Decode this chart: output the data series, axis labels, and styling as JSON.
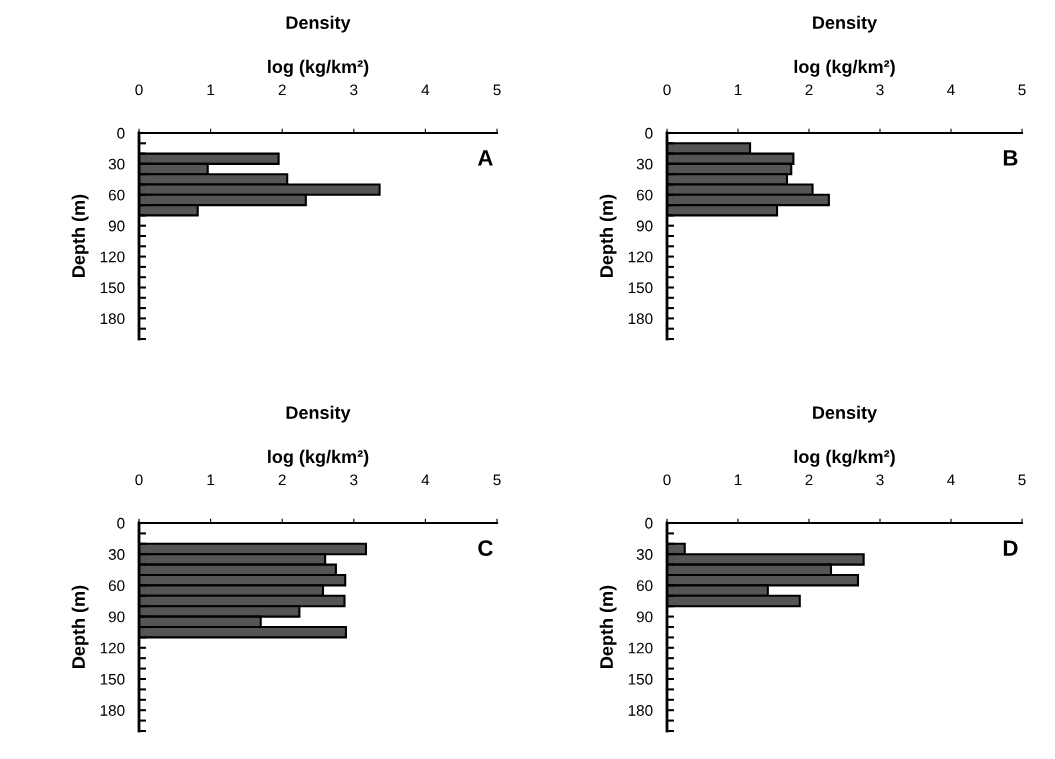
{
  "chart_data": [
    {
      "type": "bar",
      "orientation": "horizontal",
      "title": "Density",
      "xlabel": "log (kg/km²)",
      "ylabel": "Depth (m)",
      "annotations": [
        "A"
      ],
      "x": [
        25,
        35,
        45,
        55,
        65,
        75
      ],
      "values": [
        1.95,
        0.96,
        2.07,
        3.36,
        2.33,
        0.82
      ],
      "color": "#555555",
      "xlim": [
        0,
        5
      ],
      "xticks": [
        0,
        1,
        2,
        3,
        4,
        5
      ],
      "ylim": [
        200,
        0
      ],
      "yticks": [
        0,
        {
          "value": 10,
          "label": null
        },
        {
          "value": 20,
          "label": null
        },
        30,
        {
          "value": 40,
          "label": null
        },
        {
          "value": 50,
          "label": null
        },
        60,
        {
          "value": 70,
          "label": null
        },
        {
          "value": 80,
          "label": null
        },
        90,
        {
          "value": 100,
          "label": null
        },
        {
          "value": 110,
          "label": null
        },
        120,
        {
          "value": 130,
          "label": null
        },
        {
          "value": 140,
          "label": null
        },
        150,
        {
          "value": 160,
          "label": null
        },
        {
          "value": 170,
          "label": null
        },
        180,
        {
          "value": 190,
          "label": null
        },
        {
          "value": 200,
          "label": null
        }
      ],
      "grid": false,
      "legend": false
    },
    {
      "type": "bar",
      "orientation": "horizontal",
      "title": "Density",
      "xlabel": "log (kg/km²)",
      "ylabel": "Depth (m)",
      "annotations": [
        "B"
      ],
      "x": [
        15,
        25,
        35,
        45,
        55,
        65,
        75
      ],
      "values": [
        1.17,
        1.78,
        1.75,
        1.69,
        2.05,
        2.28,
        1.55
      ],
      "color": "#555555",
      "xlim": [
        0,
        5
      ],
      "xticks": [
        0,
        1,
        2,
        3,
        4,
        5
      ],
      "ylim": [
        200,
        0
      ],
      "yticks": [
        0,
        {
          "value": 10,
          "label": null
        },
        {
          "value": 20,
          "label": null
        },
        30,
        {
          "value": 40,
          "label": null
        },
        {
          "value": 50,
          "label": null
        },
        60,
        {
          "value": 70,
          "label": null
        },
        {
          "value": 80,
          "label": null
        },
        90,
        {
          "value": 100,
          "label": null
        },
        {
          "value": 110,
          "label": null
        },
        120,
        {
          "value": 130,
          "label": null
        },
        {
          "value": 140,
          "label": null
        },
        150,
        {
          "value": 160,
          "label": null
        },
        {
          "value": 170,
          "label": null
        },
        180,
        {
          "value": 190,
          "label": null
        },
        {
          "value": 200,
          "label": null
        }
      ],
      "grid": false,
      "legend": false
    },
    {
      "type": "bar",
      "orientation": "horizontal",
      "title": "Density",
      "xlabel": "log (kg/km²)",
      "ylabel": "Depth (m)",
      "annotations": [
        "C"
      ],
      "x": [
        25,
        35,
        45,
        55,
        65,
        75,
        85,
        95,
        105
      ],
      "values": [
        3.17,
        2.6,
        2.75,
        2.88,
        2.57,
        2.87,
        2.24,
        1.7,
        2.89
      ],
      "color": "#555555",
      "xlim": [
        0,
        5
      ],
      "xticks": [
        0,
        1,
        2,
        3,
        4,
        5
      ],
      "ylim": [
        200,
        0
      ],
      "yticks": [
        0,
        {
          "value": 10,
          "label": null
        },
        {
          "value": 20,
          "label": null
        },
        30,
        {
          "value": 40,
          "label": null
        },
        {
          "value": 50,
          "label": null
        },
        60,
        {
          "value": 70,
          "label": null
        },
        {
          "value": 80,
          "label": null
        },
        90,
        {
          "value": 100,
          "label": null
        },
        {
          "value": 110,
          "label": null
        },
        120,
        {
          "value": 130,
          "label": null
        },
        {
          "value": 140,
          "label": null
        },
        150,
        {
          "value": 160,
          "label": null
        },
        {
          "value": 170,
          "label": null
        },
        180,
        {
          "value": 190,
          "label": null
        },
        {
          "value": 200,
          "label": null
        }
      ],
      "grid": false,
      "legend": false
    },
    {
      "type": "bar",
      "orientation": "horizontal",
      "title": "Density",
      "xlabel": "log (kg/km²)",
      "ylabel": "Depth (m)",
      "annotations": [
        "D"
      ],
      "x": [
        25,
        35,
        45,
        55,
        65,
        75
      ],
      "values": [
        0.25,
        2.77,
        2.31,
        2.69,
        1.42,
        1.87
      ],
      "color": "#555555",
      "xlim": [
        0,
        5
      ],
      "xticks": [
        0,
        1,
        2,
        3,
        4,
        5
      ],
      "ylim": [
        200,
        0
      ],
      "yticks": [
        0,
        {
          "value": 10,
          "label": null
        },
        {
          "value": 20,
          "label": null
        },
        30,
        {
          "value": 40,
          "label": null
        },
        {
          "value": 50,
          "label": null
        },
        60,
        {
          "value": 70,
          "label": null
        },
        {
          "value": 80,
          "label": null
        },
        90,
        {
          "value": 100,
          "label": null
        },
        {
          "value": 110,
          "label": null
        },
        120,
        {
          "value": 130,
          "label": null
        },
        {
          "value": 140,
          "label": null
        },
        150,
        {
          "value": 160,
          "label": null
        },
        {
          "value": 170,
          "label": null
        },
        180,
        {
          "value": 190,
          "label": null
        },
        {
          "value": 200,
          "label": null
        }
      ],
      "grid": false,
      "legend": false
    }
  ]
}
